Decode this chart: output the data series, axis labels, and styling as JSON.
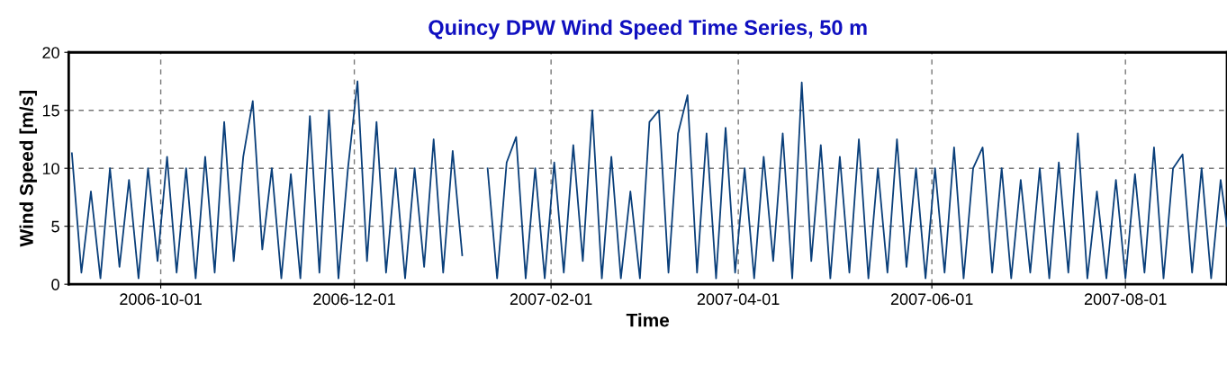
{
  "chart_data": {
    "type": "line",
    "title": "Quincy DPW Wind Speed Time Series, 50 m",
    "xlabel": "Time",
    "ylabel": "Wind Speed [m/s]",
    "x": [
      "2006-09-03",
      "2006-09-06",
      "2006-09-09",
      "2006-09-12",
      "2006-09-15",
      "2006-09-18",
      "2006-09-21",
      "2006-09-24",
      "2006-09-27",
      "2006-09-30",
      "2006-10-03",
      "2006-10-06",
      "2006-10-09",
      "2006-10-12",
      "2006-10-15",
      "2006-10-18",
      "2006-10-21",
      "2006-10-24",
      "2006-10-27",
      "2006-10-30",
      "2006-11-02",
      "2006-11-05",
      "2006-11-08",
      "2006-11-11",
      "2006-11-14",
      "2006-11-17",
      "2006-11-20",
      "2006-11-23",
      "2006-11-26",
      "2006-11-29",
      "2006-12-02",
      "2006-12-05",
      "2006-12-08",
      "2006-12-11",
      "2006-12-14",
      "2006-12-17",
      "2006-12-20",
      "2006-12-23",
      "2006-12-26",
      "2006-12-29",
      "2007-01-01",
      "2007-01-04",
      "2007-01-08",
      "2007-01-12",
      "2007-01-15",
      "2007-01-18",
      "2007-01-21",
      "2007-01-24",
      "2007-01-27",
      "2007-01-30",
      "2007-02-02",
      "2007-02-05",
      "2007-02-08",
      "2007-02-11",
      "2007-02-14",
      "2007-02-17",
      "2007-02-20",
      "2007-02-23",
      "2007-02-26",
      "2007-03-01",
      "2007-03-04",
      "2007-03-07",
      "2007-03-10",
      "2007-03-13",
      "2007-03-16",
      "2007-03-19",
      "2007-03-22",
      "2007-03-25",
      "2007-03-28",
      "2007-03-31",
      "2007-04-03",
      "2007-04-06",
      "2007-04-09",
      "2007-04-12",
      "2007-04-15",
      "2007-04-18",
      "2007-04-21",
      "2007-04-24",
      "2007-04-27",
      "2007-04-30",
      "2007-05-03",
      "2007-05-06",
      "2007-05-09",
      "2007-05-12",
      "2007-05-15",
      "2007-05-18",
      "2007-05-21",
      "2007-05-24",
      "2007-05-27",
      "2007-05-30",
      "2007-06-02",
      "2007-06-05",
      "2007-06-08",
      "2007-06-11",
      "2007-06-14",
      "2007-06-17",
      "2007-06-20",
      "2007-06-23",
      "2007-06-26",
      "2007-06-29",
      "2007-07-02",
      "2007-07-05",
      "2007-07-08",
      "2007-07-11",
      "2007-07-14",
      "2007-07-17",
      "2007-07-20",
      "2007-07-23",
      "2007-07-26",
      "2007-07-29",
      "2007-08-01",
      "2007-08-04",
      "2007-08-07",
      "2007-08-10",
      "2007-08-13",
      "2007-08-16",
      "2007-08-19",
      "2007-08-22",
      "2007-08-25",
      "2007-08-28",
      "2007-08-31",
      "2007-09-02"
    ],
    "series": [
      {
        "color": "#0a3f7a",
        "values": [
          11.3,
          1,
          8,
          0.5,
          10,
          1.5,
          9,
          0.5,
          10,
          2,
          11,
          1,
          10,
          0.5,
          11,
          1,
          14,
          2,
          11,
          15.8,
          3,
          10,
          0.5,
          9.5,
          0.5,
          14.5,
          1,
          15,
          0.5,
          10,
          17.5,
          2,
          14,
          1,
          10,
          0.5,
          10,
          1.5,
          12.5,
          1,
          11.5,
          2.5,
          null,
          10,
          0.5,
          10.5,
          12.7,
          0.5,
          10,
          0.5,
          10.5,
          1,
          12,
          2,
          15,
          0.5,
          11,
          0.5,
          8,
          0.5,
          14,
          15,
          1,
          13,
          16.3,
          1,
          13,
          0.5,
          13.5,
          1,
          10,
          0.5,
          11,
          2,
          13,
          0.5,
          17.4,
          2,
          12,
          0.5,
          11,
          1,
          12.5,
          0.5,
          10,
          1,
          12.5,
          1.5,
          10,
          0.5,
          10,
          1,
          11.8,
          0.5,
          10,
          11.8,
          1,
          10,
          0.5,
          9,
          1,
          10,
          0.5,
          10.5,
          1,
          13,
          0.5,
          8,
          0.5,
          9,
          0.5,
          9.5,
          1,
          11.8,
          0.5,
          10,
          11.2,
          1,
          10,
          0.5,
          9,
          5
        ]
      }
    ],
    "xlim": [
      "2006-09-02",
      "2007-09-02"
    ],
    "xticks": [
      "2006-10-01",
      "2006-12-01",
      "2007-02-01",
      "2007-04-01",
      "2007-06-01",
      "2007-08-01"
    ],
    "ylim": [
      0,
      20
    ],
    "yticks": [
      0,
      5,
      10,
      15,
      20
    ],
    "grid": true,
    "line_style": "solid",
    "marker": "none"
  }
}
